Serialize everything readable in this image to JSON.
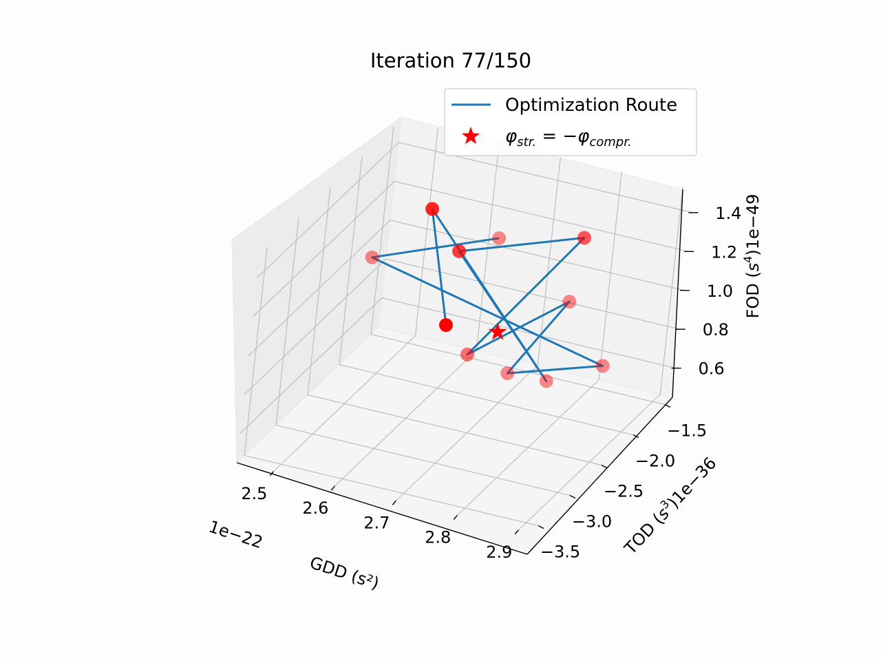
{
  "chart_data": {
    "type": "scatter",
    "projection": "3d",
    "title": "Iteration 77/150",
    "legend_placement": "top-right",
    "grid": true,
    "x_axis": {
      "label": "GDD (s²)",
      "offset": "1e−22",
      "ticks": [
        "2.5",
        "2.6",
        "2.7",
        "2.8",
        "2.9"
      ]
    },
    "y_axis": {
      "label": "TOD (s³)1e−36",
      "ticks": [
        "−3.5",
        "−3.0",
        "−2.5",
        "−2.0",
        "−1.5"
      ]
    },
    "z_axis": {
      "label": "FOD (s⁴)1e−49",
      "ticks": [
        "0.6",
        "0.8",
        "1.0",
        "1.2",
        "1.4"
      ]
    },
    "series": [
      {
        "name": "Optimization Route",
        "kind": "line",
        "color": "#1f77b4",
        "points": [
          {
            "gdd": 2.74,
            "tod": -2.75,
            "fod": 1.56,
            "alpha": 0.45
          },
          {
            "gdd": 2.46,
            "tod": -1.85,
            "fod": 0.97,
            "alpha": 0.45
          },
          {
            "gdd": 2.9,
            "tod": -2.45,
            "fod": 0.93,
            "alpha": 0.45
          },
          {
            "gdd": 2.7,
            "tod": -1.9,
            "fod": 0.57,
            "alpha": 0.45
          },
          {
            "gdd": 2.89,
            "tod": -3.05,
            "fod": 1.44,
            "alpha": 0.45
          },
          {
            "gdd": 2.66,
            "tod": -2.2,
            "fod": 0.73,
            "alpha": 0.55
          },
          {
            "gdd": 2.77,
            "tod": -1.58,
            "fod": 1.22,
            "alpha": 0.65
          },
          {
            "gdd": 2.62,
            "tod": -2.1,
            "fod": 1.2,
            "alpha": 0.75
          },
          {
            "gdd": 2.84,
            "tod": -2.75,
            "fod": 0.9,
            "alpha": 0.45
          },
          {
            "gdd": 2.57,
            "tod": -2.1,
            "fod": 1.38,
            "alpha": 0.85
          },
          {
            "gdd": 2.63,
            "tod": -2.3,
            "fod": 0.89,
            "alpha": 1.0
          }
        ]
      },
      {
        "name": "φstr. = −φcompr.",
        "kind": "star",
        "color": "#ff0000",
        "points": [
          {
            "gdd": 2.7,
            "tod": -2.15,
            "fod": 0.86
          }
        ]
      }
    ]
  },
  "labels": {
    "title": "Iteration 77/150",
    "x_offset": "1e−22",
    "x_label": "GDD (s²)",
    "y_label_main": "TOD (",
    "y_label_s": "s",
    "y_label_exp": "3",
    "y_label_tail": ")1e−36",
    "z_label_main": "FOD (",
    "z_label_s": "s",
    "z_label_exp": "4",
    "z_label_tail": ")1e−49",
    "legend_route": "Optimization Route",
    "legend_star_phi": "φ",
    "legend_star_sub1": "str.",
    "legend_star_mid": " = −",
    "legend_star_phi2": "φ",
    "legend_star_sub2": "compr."
  }
}
